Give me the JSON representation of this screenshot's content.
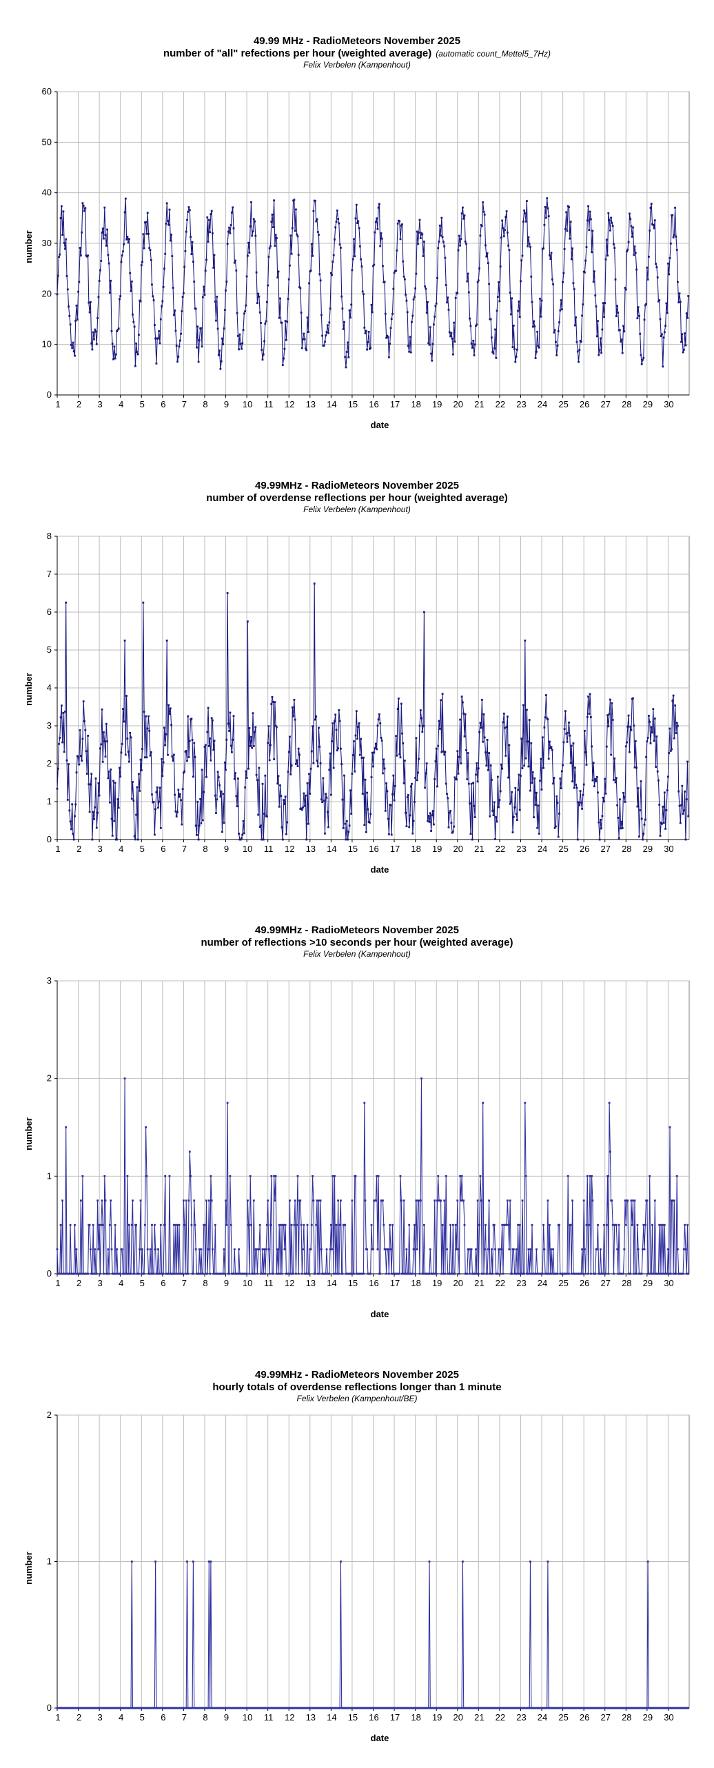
{
  "chart_data": [
    {
      "type": "line",
      "title": "49.99 MHz - RadioMeteors November 2025",
      "title2": "number of \"all\" refections per hour (weighted average)",
      "title2_note": "(automatic count_Mettel5_7Hz)",
      "subtitle": "Felix Verbelen (Kampenhout)",
      "xlabel": "date",
      "ylabel": "number",
      "ylim": [
        0,
        60
      ],
      "yticks": [
        0,
        10,
        20,
        30,
        40,
        50,
        60
      ],
      "xlim": [
        1,
        31
      ],
      "xticks": [
        "1",
        "2",
        "3",
        "4",
        "5",
        "6",
        "7",
        "8",
        "9",
        "10",
        "11",
        "12",
        "13",
        "14",
        "15",
        "16",
        "17",
        "18",
        "19",
        "20",
        "21",
        "22",
        "23",
        "24",
        "25",
        "26",
        "27",
        "28",
        "29",
        "30"
      ],
      "grid": true,
      "series": [
        {
          "name": "all reflections",
          "color": "#1a1a80",
          "mode": "diurnal",
          "base": 22,
          "amp": 13,
          "noise": 4,
          "seed": 11,
          "ymin": 4
        }
      ]
    },
    {
      "type": "line",
      "title": "49.99MHz - RadioMeteors November 2025",
      "title2": "number of overdense reflections per hour (weighted average)",
      "title2_note": "",
      "subtitle": "Felix Verbelen (Kampenhout)",
      "xlabel": "date",
      "ylabel": "number",
      "ylim": [
        0,
        8
      ],
      "yticks": [
        0,
        1,
        2,
        3,
        4,
        5,
        6,
        7,
        8
      ],
      "xlim": [
        1,
        31
      ],
      "xticks": [
        "1",
        "2",
        "3",
        "4",
        "5",
        "6",
        "7",
        "8",
        "9",
        "10",
        "11",
        "12",
        "13",
        "14",
        "15",
        "16",
        "17",
        "18",
        "19",
        "20",
        "21",
        "22",
        "23",
        "24",
        "25",
        "26",
        "27",
        "28",
        "29",
        "30"
      ],
      "grid": true,
      "series": [
        {
          "name": "overdense reflections",
          "color": "#1a1a80",
          "mode": "diurnal",
          "base": 1.8,
          "amp": 1.2,
          "noise": 0.9,
          "seed": 23,
          "ymin": 0,
          "peaks": [
            [
              1.4,
              6.25
            ],
            [
              5.1,
              6.25
            ],
            [
              9.1,
              6.5
            ],
            [
              10.05,
              5.75
            ],
            [
              13.2,
              6.75
            ],
            [
              18.4,
              6.0
            ],
            [
              23.2,
              5.25
            ],
            [
              4.2,
              5.25
            ],
            [
              6.2,
              5.25
            ]
          ]
        }
      ]
    },
    {
      "type": "line",
      "title": "49.99MHz - RadioMeteors November 2025",
      "title2": "number of reflections >10 seconds per hour (weighted average)",
      "title2_note": "",
      "subtitle": "Felix Verbelen (Kampenhout)",
      "xlabel": "date",
      "ylabel": "number",
      "ylim": [
        0,
        3
      ],
      "yticks": [
        0,
        1,
        2,
        3
      ],
      "xlim": [
        1,
        31
      ],
      "xticks": [
        "1",
        "2",
        "3",
        "4",
        "5",
        "6",
        "7",
        "8",
        "9",
        "10",
        "11",
        "12",
        "13",
        "14",
        "15",
        "16",
        "17",
        "18",
        "19",
        "20",
        "21",
        "22",
        "23",
        "24",
        "25",
        "26",
        "27",
        "28",
        "29",
        "30"
      ],
      "grid": true,
      "series": [
        {
          "name": "reflections >10 s",
          "color": "#3030a0",
          "mode": "sparse",
          "base": 0.3,
          "amp": 0.3,
          "noise": 0.5,
          "seed": 37,
          "ymin": 0,
          "step": 0.25,
          "peaks": [
            [
              4.2,
              2.0
            ],
            [
              18.3,
              2.0
            ],
            [
              9.1,
              1.75
            ],
            [
              15.6,
              1.75
            ],
            [
              21.2,
              1.75
            ],
            [
              23.2,
              1.75
            ],
            [
              27.2,
              1.75
            ],
            [
              1.4,
              1.5
            ],
            [
              5.2,
              1.5
            ],
            [
              30.1,
              1.5
            ]
          ]
        }
      ]
    },
    {
      "type": "line",
      "title": "49.99MHz - RadioMeteors November 2025",
      "title2": "hourly totals of overdense reflections longer than 1 minute",
      "title2_note": "",
      "subtitle": "Felix Verbelen (Kampenhout/BE)",
      "xlabel": "date",
      "ylabel": "number",
      "ylim": [
        0,
        2
      ],
      "yticks": [
        0,
        1,
        2
      ],
      "xlim": [
        1,
        31
      ],
      "xticks": [
        "1",
        "2",
        "3",
        "4",
        "5",
        "6",
        "7",
        "8",
        "9",
        "10",
        "11",
        "12",
        "13",
        "14",
        "15",
        "16",
        "17",
        "18",
        "19",
        "20",
        "21",
        "22",
        "23",
        "24",
        "25",
        "26",
        "27",
        "28",
        "29",
        "30"
      ],
      "grid": true,
      "series": [
        {
          "name": "overdense reflections > 1 minute",
          "color": "#3030a0",
          "mode": "events",
          "events": [
            4.55,
            5.65,
            7.15,
            7.45,
            8.2,
            8.3,
            14.45,
            18.65,
            20.25,
            23.45,
            24.3,
            29.05
          ]
        }
      ]
    }
  ]
}
